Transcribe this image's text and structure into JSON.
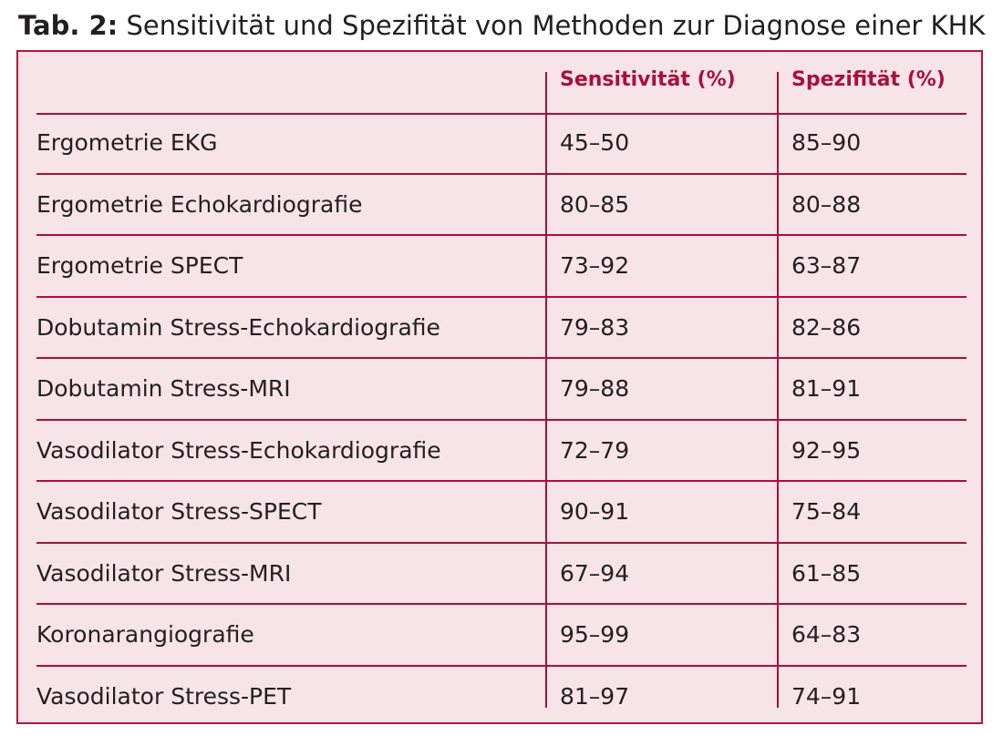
{
  "caption": {
    "label": "Tab. 2:",
    "text": " Sensitivität und Spezifität von Methoden zur Diagnose einer KHK"
  },
  "table": {
    "columns": [
      "",
      "Sensitivität (%)",
      "Spezifität (%)"
    ],
    "rows": [
      [
        "Ergometrie EKG",
        "45–50",
        "85–90"
      ],
      [
        "Ergometrie Echokardiografie",
        "80–85",
        "80–88"
      ],
      [
        "Ergometrie SPECT",
        "73–92",
        "63–87"
      ],
      [
        "Dobutamin Stress-Echokardiografie",
        "79–83",
        "82–86"
      ],
      [
        "Dobutamin Stress-MRI",
        "79–88",
        "81–91"
      ],
      [
        "Vasodilator Stress-Echokardiografie",
        "72–79",
        "92–95"
      ],
      [
        "Vasodilator Stress-SPECT",
        "90–91",
        "75–84"
      ],
      [
        "Vasodilator Stress-MRI",
        "67–94",
        "61–85"
      ],
      [
        "Koronarangiografie",
        "95–99",
        "64–83"
      ],
      [
        "Vasodilator Stress-PET",
        "81–97",
        "74–91"
      ]
    ]
  },
  "colors": {
    "accent": "#a8103c",
    "table_background": "#f7e4e7",
    "text": "#231f20"
  }
}
